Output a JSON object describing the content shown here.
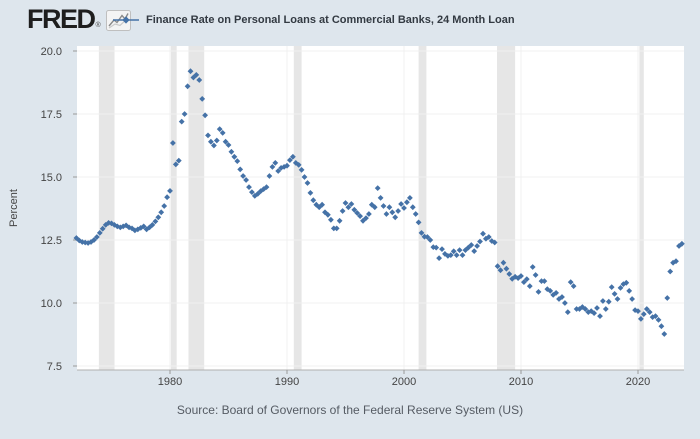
{
  "header": {
    "logo_text": "FRED"
  },
  "footer": {
    "source": "Source: Board of Governors of the Federal Reserve System (US)"
  },
  "colors": {
    "marker": "#4572a7",
    "recession_band": "#e6e6e6",
    "plot_background": "#ffffff",
    "gridline": "#f0f0f0",
    "axis_line": "#b0b0b0",
    "tick": "#999999",
    "axis_text": "#444444",
    "page_background": "#dee6ed"
  },
  "chart_data": {
    "type": "scatter",
    "title": "Finance Rate on Personal Loans at Commercial Banks, 24 Month Loan",
    "xlabel": "",
    "ylabel": "Percent",
    "ylim": [
      7.5,
      20.0
    ],
    "yticks": [
      20.0,
      17.5,
      15.0,
      12.5,
      10.0,
      7.5
    ],
    "ytick_labels": [
      "20.0",
      "17.5",
      "15.0",
      "12.5",
      "10.0",
      "7.5"
    ],
    "xticks": [
      1980,
      1990,
      2000,
      2010,
      2020
    ],
    "xtick_labels": [
      "1980",
      "1990",
      "2000",
      "2010",
      "2020"
    ],
    "xlim": [
      1972.0,
      2023.95
    ],
    "grid": true,
    "legend_position": "top",
    "marker": "diamond",
    "frequency": "quarterly",
    "recession_bands": [
      [
        1973.92,
        1975.25
      ],
      [
        1980.08,
        1980.58
      ],
      [
        1981.58,
        1982.92
      ],
      [
        1990.58,
        1991.25
      ],
      [
        2001.25,
        2001.92
      ],
      [
        2007.95,
        2009.5
      ],
      [
        2020.12,
        2020.5
      ]
    ],
    "series": [
      {
        "name": "Finance Rate on Personal Loans at Commercial Banks, 24 Month Loan",
        "start_year": 1972,
        "points_per_year": 4,
        "values": [
          12.58,
          12.48,
          12.42,
          12.4,
          12.38,
          12.42,
          12.5,
          12.62,
          12.78,
          12.95,
          13.1,
          13.18,
          13.16,
          13.1,
          13.04,
          13.0,
          13.04,
          13.08,
          13.0,
          12.96,
          12.88,
          12.92,
          12.98,
          13.04,
          12.92,
          13.0,
          13.1,
          13.24,
          13.4,
          13.6,
          13.85,
          14.2,
          14.45,
          16.35,
          15.5,
          15.65,
          17.2,
          17.5,
          18.6,
          19.2,
          18.95,
          19.05,
          18.85,
          18.1,
          17.45,
          16.65,
          16.4,
          16.25,
          16.45,
          16.9,
          16.75,
          16.4,
          16.27,
          16.0,
          15.8,
          15.63,
          15.3,
          15.04,
          14.88,
          14.6,
          14.4,
          14.25,
          14.33,
          14.44,
          14.52,
          14.6,
          15.04,
          15.4,
          15.56,
          15.24,
          15.36,
          15.4,
          15.45,
          15.67,
          15.8,
          15.56,
          15.48,
          15.28,
          15.0,
          14.76,
          14.37,
          14.08,
          13.9,
          13.8,
          13.9,
          13.6,
          13.5,
          13.3,
          12.96,
          12.96,
          13.26,
          13.65,
          13.97,
          13.8,
          13.93,
          13.7,
          13.57,
          13.45,
          13.26,
          13.37,
          13.53,
          13.9,
          13.8,
          14.56,
          14.17,
          13.85,
          13.53,
          13.8,
          13.6,
          13.4,
          13.65,
          13.93,
          13.77,
          14.0,
          14.17,
          13.8,
          13.53,
          13.2,
          12.78,
          12.63,
          12.62,
          12.5,
          12.22,
          12.2,
          11.78,
          12.14,
          11.95,
          11.87,
          11.9,
          12.05,
          11.9,
          12.1,
          11.9,
          12.1,
          12.2,
          12.3,
          12.06,
          12.26,
          12.44,
          12.75,
          12.55,
          12.62,
          12.46,
          12.4,
          11.46,
          11.3,
          11.6,
          11.36,
          11.15,
          10.96,
          11.04,
          10.99,
          11.07,
          10.83,
          10.95,
          10.67,
          11.43,
          11.11,
          10.44,
          10.87,
          10.87,
          10.55,
          10.48,
          10.32,
          10.4,
          10.16,
          10.24,
          10.0,
          9.64,
          10.83,
          10.67,
          9.76,
          9.76,
          9.84,
          9.76,
          9.64,
          9.68,
          9.6,
          9.8,
          9.48,
          10.08,
          9.76,
          10.05,
          10.63,
          10.36,
          10.16,
          10.6,
          10.75,
          10.8,
          10.48,
          10.16,
          9.72,
          9.68,
          9.37,
          9.56,
          9.76,
          9.64,
          9.44,
          9.48,
          9.33,
          9.08,
          8.77,
          10.2,
          11.25,
          11.6,
          11.66,
          12.26,
          12.35
        ]
      }
    ]
  }
}
